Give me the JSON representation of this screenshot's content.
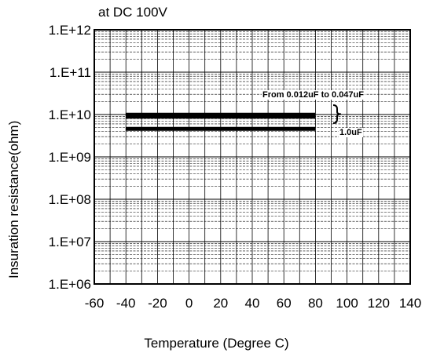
{
  "chart_data": {
    "type": "line",
    "subtitle": "at DC 100V",
    "xlabel": "Temperature (Degree C)",
    "ylabel": "Insuration resistance(ohm)",
    "x_ticks": [
      "-60",
      "-40",
      "-20",
      "0",
      "20",
      "40",
      "60",
      "80",
      "100",
      "120",
      "140"
    ],
    "y_ticks": [
      "1.E+06",
      "1.E+07",
      "1.E+08",
      "1.E+09",
      "1.E+10",
      "1.E+11",
      "1.E+12"
    ],
    "xlim": [
      -60,
      140
    ],
    "ylim_log10": [
      6,
      12
    ],
    "y_scale": "log",
    "grid": true,
    "series": [
      {
        "name": "From 0.012uF to 0.047uF",
        "x": [
          -40,
          -20,
          0,
          20,
          40,
          60,
          80
        ],
        "y": [
          10000000000,
          9500000000,
          9500000000,
          9000000000,
          9000000000,
          9000000000,
          9000000000
        ],
        "band_upper": 11000000000,
        "band_lower": 8000000000
      },
      {
        "name": "1.0uF",
        "x": [
          -40,
          80
        ],
        "y": [
          4600000000,
          4600000000
        ]
      }
    ],
    "colors": {
      "series": "#000000",
      "grid": "#000000"
    }
  }
}
